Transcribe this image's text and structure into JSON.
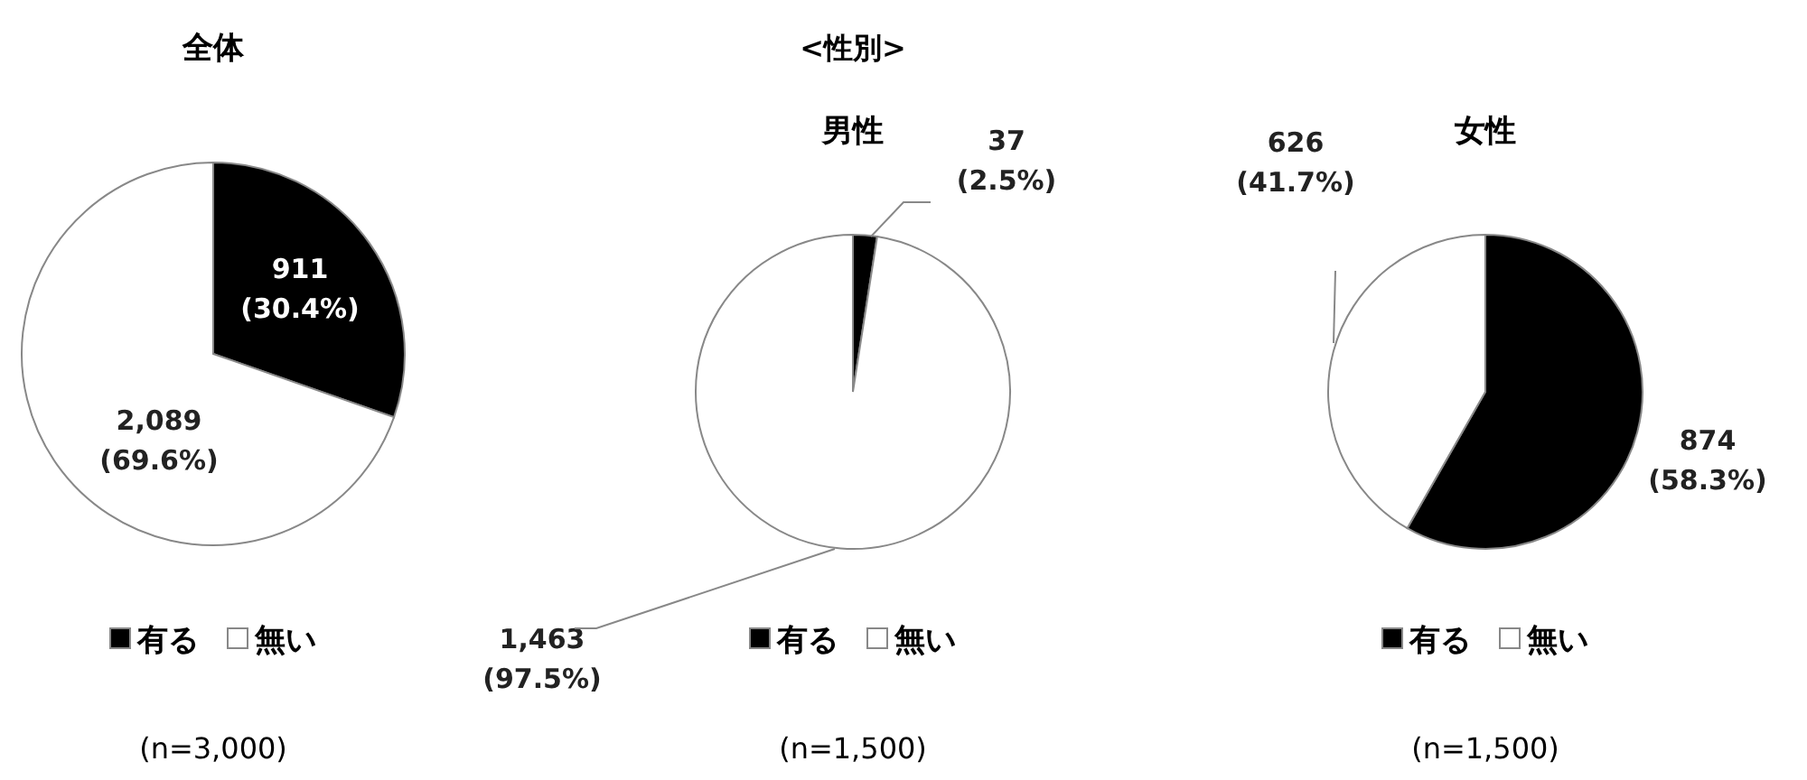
{
  "chart_data": [
    {
      "type": "pie",
      "title": "全体",
      "categories": [
        "有る",
        "無い"
      ],
      "values": [
        911,
        2089
      ],
      "colors": [
        "#000000",
        "#ffffff"
      ],
      "value_labels": [
        "911\n(30.4%)",
        "2,089\n(69.6%)"
      ],
      "legend": "bottom",
      "annotations": [
        "(n=3,000)"
      ]
    },
    {
      "type": "pie",
      "subtitle": "<性別>",
      "title": "男性",
      "categories": [
        "有る",
        "無い"
      ],
      "values": [
        37,
        1463
      ],
      "colors": [
        "#000000",
        "#ffffff"
      ],
      "value_labels": [
        "37\n(2.5%)",
        "1,463\n(97.5%)"
      ],
      "legend": "bottom",
      "annotations": [
        "(n=1,500)"
      ]
    },
    {
      "type": "pie",
      "title": "女性",
      "categories": [
        "有る",
        "無い"
      ],
      "values": [
        874,
        626
      ],
      "colors": [
        "#000000",
        "#ffffff"
      ],
      "value_labels": [
        "874\n(58.3%)",
        "626\n(41.7%)"
      ],
      "legend": "bottom",
      "annotations": [
        "(n=1,500)"
      ]
    }
  ]
}
